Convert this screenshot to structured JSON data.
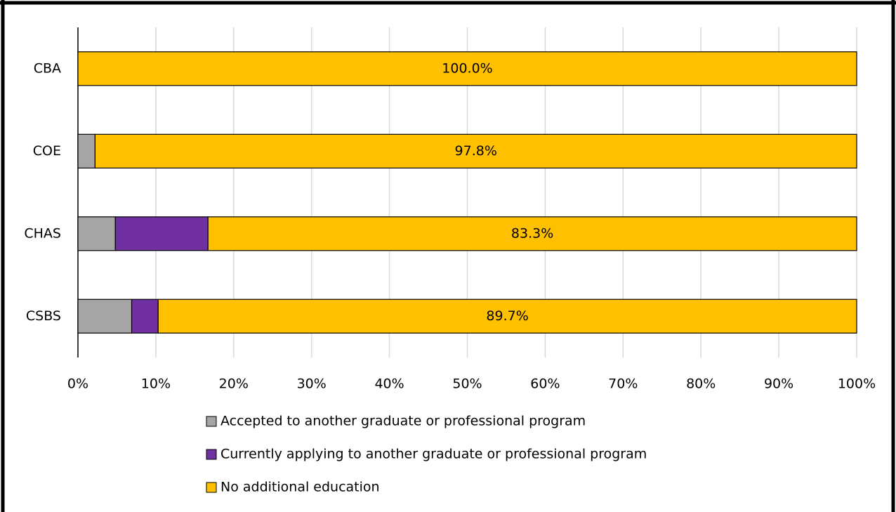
{
  "chart_data": {
    "type": "stacked-bar-horizontal",
    "categories": [
      "CBA",
      "COE",
      "CHAS",
      "CSBS"
    ],
    "series": [
      {
        "name": "Accepted to another graduate or professional program",
        "color": "#a5a5a5",
        "values": [
          0,
          2.2,
          4.8,
          6.9
        ]
      },
      {
        "name": "Currently applying to another graduate or professional program",
        "color": "#7030a0",
        "values": [
          0,
          0,
          11.9,
          3.4
        ]
      },
      {
        "name": "No additional education",
        "color": "#ffc000",
        "values": [
          100,
          97.8,
          83.3,
          89.7
        ],
        "value_labels": [
          "100.0%",
          "97.8%",
          "83.3%",
          "89.7%"
        ]
      }
    ],
    "xlim": [
      0,
      100
    ],
    "xticks": [
      {
        "value": 0,
        "label": "0%"
      },
      {
        "value": 10,
        "label": "10%"
      },
      {
        "value": 20,
        "label": "20%"
      },
      {
        "value": 30,
        "label": "30%"
      },
      {
        "value": 40,
        "label": "40%"
      },
      {
        "value": 50,
        "label": "50%"
      },
      {
        "value": 60,
        "label": "60%"
      },
      {
        "value": 70,
        "label": "70%"
      },
      {
        "value": 80,
        "label": "80%"
      },
      {
        "value": 90,
        "label": "90%"
      },
      {
        "value": 100,
        "label": "100%"
      }
    ],
    "grid": true,
    "legend": "bottom"
  }
}
